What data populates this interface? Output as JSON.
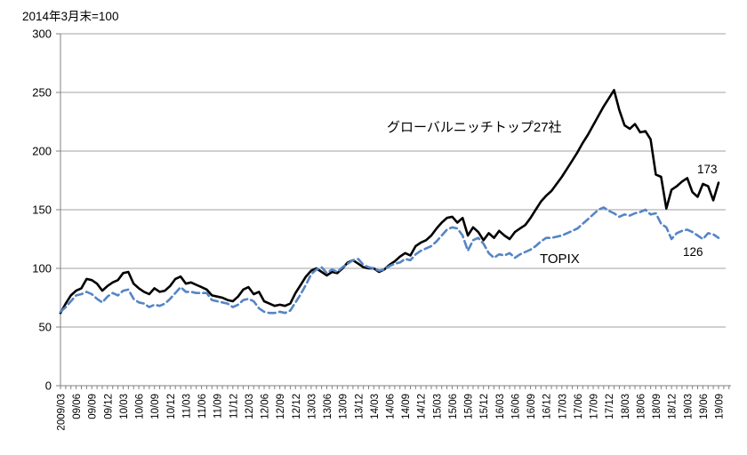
{
  "title": "2014年3月末=100",
  "annotations": {
    "series1_label": "グローバルニッチトップ27社",
    "series2_label": "TOPIX",
    "series1_end_value": "173",
    "series2_end_value": "126"
  },
  "colors": {
    "series1": "#000000",
    "series2": "#5585c5",
    "gridline": "#a0a0a0",
    "axis": "#808080",
    "background": "#ffffff",
    "text": "#000000"
  },
  "chart_data": {
    "type": "line",
    "title": "2014年3月末=100",
    "xlabel": "",
    "ylabel": "",
    "ylim": [
      0,
      300
    ],
    "y_ticks": [
      0,
      50,
      100,
      150,
      200,
      250,
      300
    ],
    "grid": "horizontal",
    "legend_position": "inline-annotations",
    "x_frequency": "monthly",
    "x_start": "2009/03",
    "x_end": "19/09",
    "x_tick_labels": [
      "2009/03",
      "09/06",
      "09/09",
      "09/12",
      "10/03",
      "10/06",
      "10/09",
      "10/12",
      "11/03",
      "11/06",
      "11/09",
      "11/12",
      "12/03",
      "12/06",
      "12/09",
      "12/12",
      "13/03",
      "13/06",
      "13/09",
      "13/12",
      "14/03",
      "14/06",
      "14/09",
      "14/12",
      "15/03",
      "15/06",
      "15/09",
      "15/12",
      "16/03",
      "16/06",
      "16/09",
      "16/12",
      "17/03",
      "17/06",
      "17/09",
      "17/12",
      "18/03",
      "18/06",
      "18/09",
      "18/12",
      "19/03",
      "19/06",
      "19/09"
    ],
    "series": [
      {
        "name": "グローバルニッチトップ27社",
        "style": "solid",
        "color": "#000000",
        "end_label": "173",
        "values": [
          62,
          70,
          77,
          81,
          83,
          91,
          90,
          87,
          81,
          85,
          88,
          90,
          96,
          97,
          87,
          83,
          80,
          78,
          83,
          80,
          81,
          85,
          91,
          93,
          87,
          88,
          86,
          84,
          82,
          77,
          76,
          75,
          73,
          72,
          76,
          82,
          84,
          78,
          80,
          72,
          70,
          68,
          69,
          68,
          70,
          79,
          86,
          93,
          98,
          100,
          97,
          94,
          97,
          96,
          100,
          105,
          107,
          104,
          101,
          100,
          100,
          97,
          99,
          103,
          106,
          110,
          113,
          111,
          119,
          122,
          124,
          128,
          134,
          139,
          143,
          144,
          139,
          143,
          128,
          135,
          131,
          124,
          130,
          126,
          132,
          128,
          125,
          131,
          134,
          137,
          143,
          150,
          157,
          162,
          166,
          172,
          178,
          185,
          192,
          199,
          207,
          214,
          222,
          230,
          238,
          245,
          252,
          235,
          222,
          219,
          223,
          216,
          217,
          210,
          180,
          178,
          151,
          167,
          170,
          174,
          177,
          165,
          161,
          172,
          170,
          158,
          173
        ]
      },
      {
        "name": "TOPIX",
        "style": "dashed",
        "color": "#5585c5",
        "end_label": "126",
        "values": [
          63,
          67,
          72,
          77,
          78,
          80,
          78,
          74,
          71,
          76,
          79,
          77,
          81,
          82,
          74,
          71,
          70,
          67,
          69,
          68,
          70,
          74,
          79,
          84,
          80,
          80,
          79,
          79,
          79,
          73,
          72,
          71,
          70,
          67,
          69,
          73,
          74,
          72,
          66,
          63,
          62,
          62,
          63,
          62,
          64,
          71,
          78,
          86,
          95,
          99,
          101,
          96,
          99,
          97,
          101,
          104,
          107,
          108,
          103,
          101,
          100,
          98,
          99,
          102,
          104,
          105,
          108,
          107,
          112,
          115,
          117,
          119,
          123,
          128,
          133,
          135,
          134,
          128,
          115,
          124,
          126,
          121,
          113,
          109,
          112,
          111,
          113,
          109,
          112,
          114,
          116,
          119,
          123,
          126,
          126,
          127,
          128,
          130,
          132,
          134,
          138,
          142,
          146,
          150,
          152,
          149,
          147,
          144,
          146,
          145,
          147,
          148,
          150,
          146,
          147,
          138,
          135,
          125,
          130,
          132,
          133,
          131,
          128,
          125,
          130,
          129,
          126
        ]
      }
    ]
  }
}
